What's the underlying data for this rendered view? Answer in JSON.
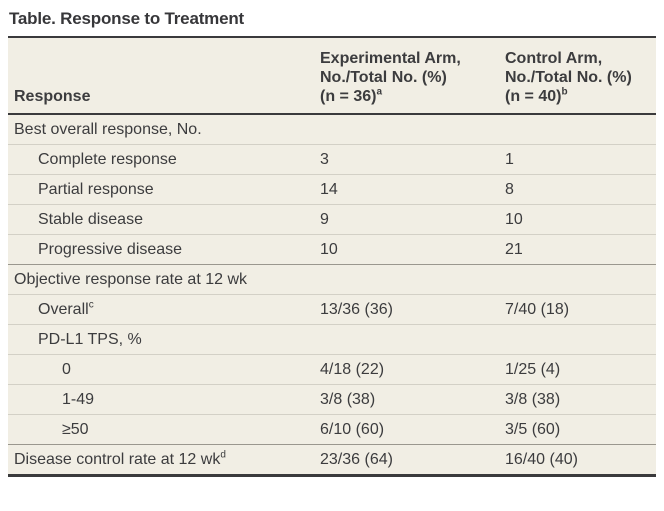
{
  "title": "Table. Response to Treatment",
  "table": {
    "columns": [
      {
        "label": "Response"
      },
      {
        "line1": "Experimental Arm,",
        "line2": "No./Total No. (%)",
        "line3": "(n = 36)",
        "sup": "a"
      },
      {
        "line1": "Control Arm,",
        "line2": "No./Total No. (%)",
        "line3": "(n = 40)",
        "sup": "b"
      }
    ],
    "rows": [
      {
        "label": "Best overall response, No.",
        "sup": "",
        "indent": 0,
        "experimental": "",
        "control": ""
      },
      {
        "label": "Complete response",
        "sup": "",
        "indent": 1,
        "experimental": "3",
        "control": "1"
      },
      {
        "label": "Partial response",
        "sup": "",
        "indent": 1,
        "experimental": "14",
        "control": "8"
      },
      {
        "label": "Stable disease",
        "sup": "",
        "indent": 1,
        "experimental": "9",
        "control": "10"
      },
      {
        "label": "Progressive disease",
        "sup": "",
        "indent": 1,
        "experimental": "10",
        "control": "21"
      },
      {
        "label": "Objective response rate at 12 wk",
        "sup": "",
        "indent": 0,
        "experimental": "",
        "control": ""
      },
      {
        "label": "Overall",
        "sup": "c",
        "indent": 1,
        "experimental": "13/36 (36)",
        "control": "7/40 (18)"
      },
      {
        "label": "PD-L1 TPS, %",
        "sup": "",
        "indent": 1,
        "experimental": "",
        "control": ""
      },
      {
        "label": "0",
        "sup": "",
        "indent": 2,
        "experimental": "4/18 (22)",
        "control": "1/25 (4)"
      },
      {
        "label": "1-49",
        "sup": "",
        "indent": 2,
        "experimental": "3/8 (38)",
        "control": "3/8 (38)"
      },
      {
        "label": "≥50",
        "sup": "",
        "indent": 2,
        "experimental": "6/10 (60)",
        "control": "3/5 (60)"
      },
      {
        "label": "Disease control rate at 12 wk",
        "sup": "d",
        "indent": 0,
        "experimental": "23/36 (64)",
        "control": "16/40 (40)"
      }
    ]
  }
}
